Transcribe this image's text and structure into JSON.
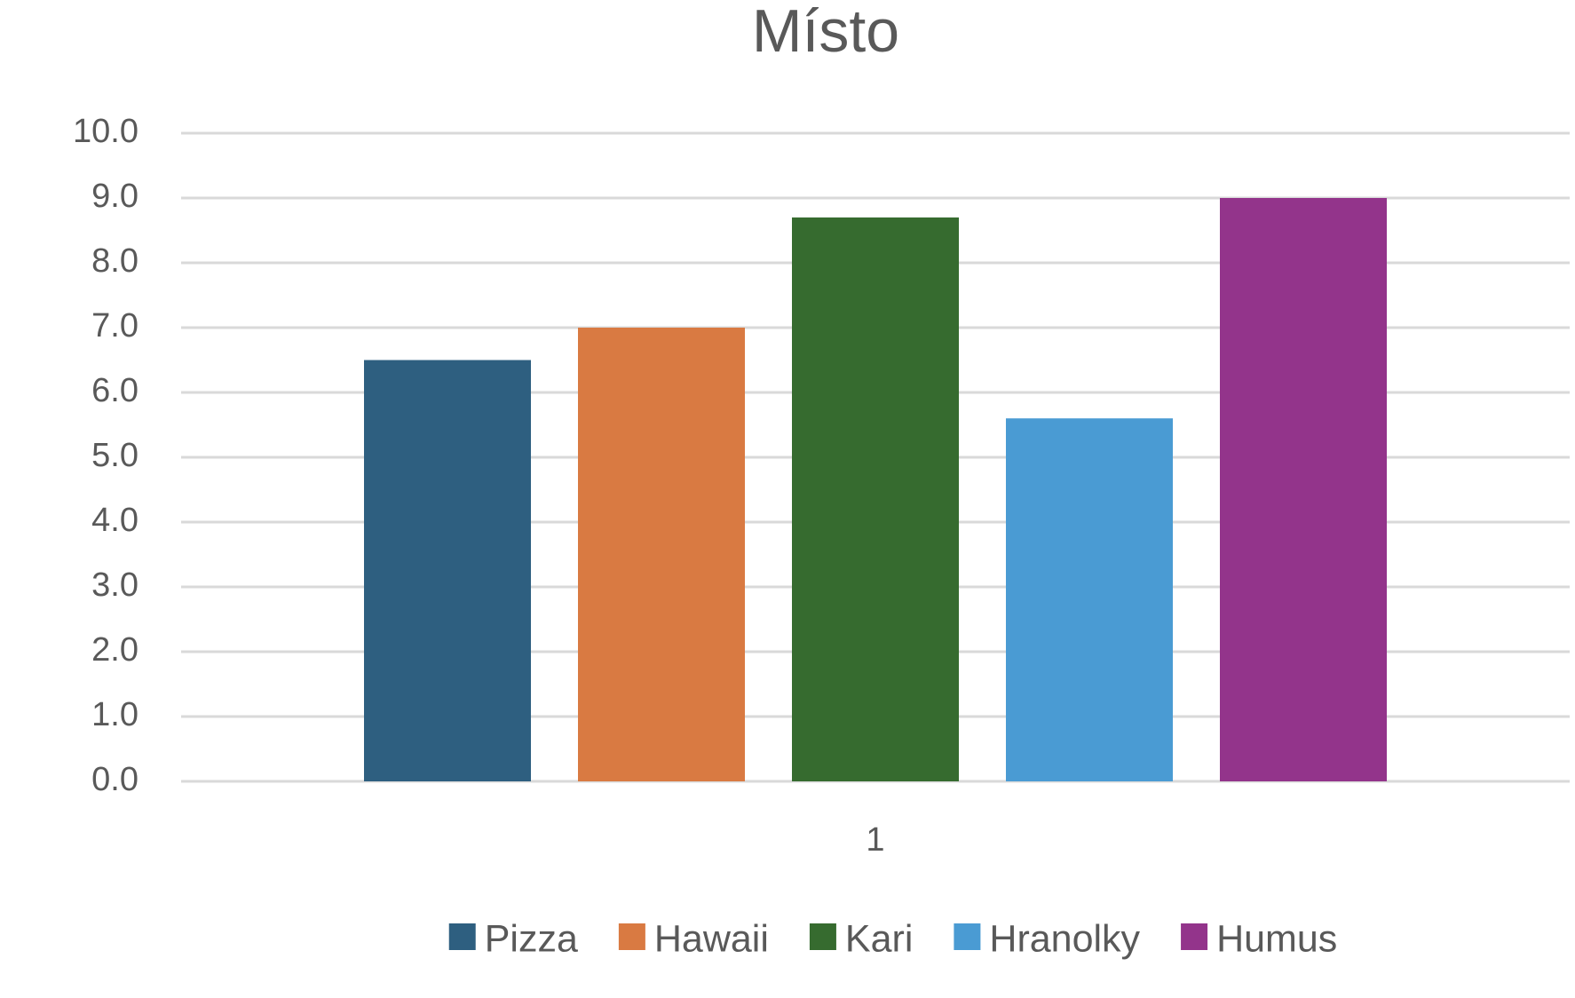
{
  "chart_data": {
    "type": "bar",
    "title": "Místo",
    "categories": [
      "1"
    ],
    "series": [
      {
        "name": "Pizza",
        "color": "#2e5f80",
        "values": [
          6.5
        ]
      },
      {
        "name": "Hawaii",
        "color": "#d97a42",
        "values": [
          7.0
        ]
      },
      {
        "name": "Kari",
        "color": "#366b2f",
        "values": [
          8.7
        ]
      },
      {
        "name": "Hranolky",
        "color": "#4a9bd3",
        "values": [
          5.6
        ]
      },
      {
        "name": "Humus",
        "color": "#93348b",
        "values": [
          9.0
        ]
      }
    ],
    "ylim": [
      0,
      10
    ],
    "yticks": [
      {
        "value": 0,
        "label": "0.0"
      },
      {
        "value": 1,
        "label": "1.0"
      },
      {
        "value": 2,
        "label": "2.0"
      },
      {
        "value": 3,
        "label": "3.0"
      },
      {
        "value": 4,
        "label": "4.0"
      },
      {
        "value": 5,
        "label": "5.0"
      },
      {
        "value": 6,
        "label": "6.0"
      },
      {
        "value": 7,
        "label": "7.0"
      },
      {
        "value": 8,
        "label": "8.0"
      },
      {
        "value": 9,
        "label": "9.0"
      },
      {
        "value": 10,
        "label": "10.0"
      }
    ],
    "grid": true,
    "legend": "bottom"
  }
}
